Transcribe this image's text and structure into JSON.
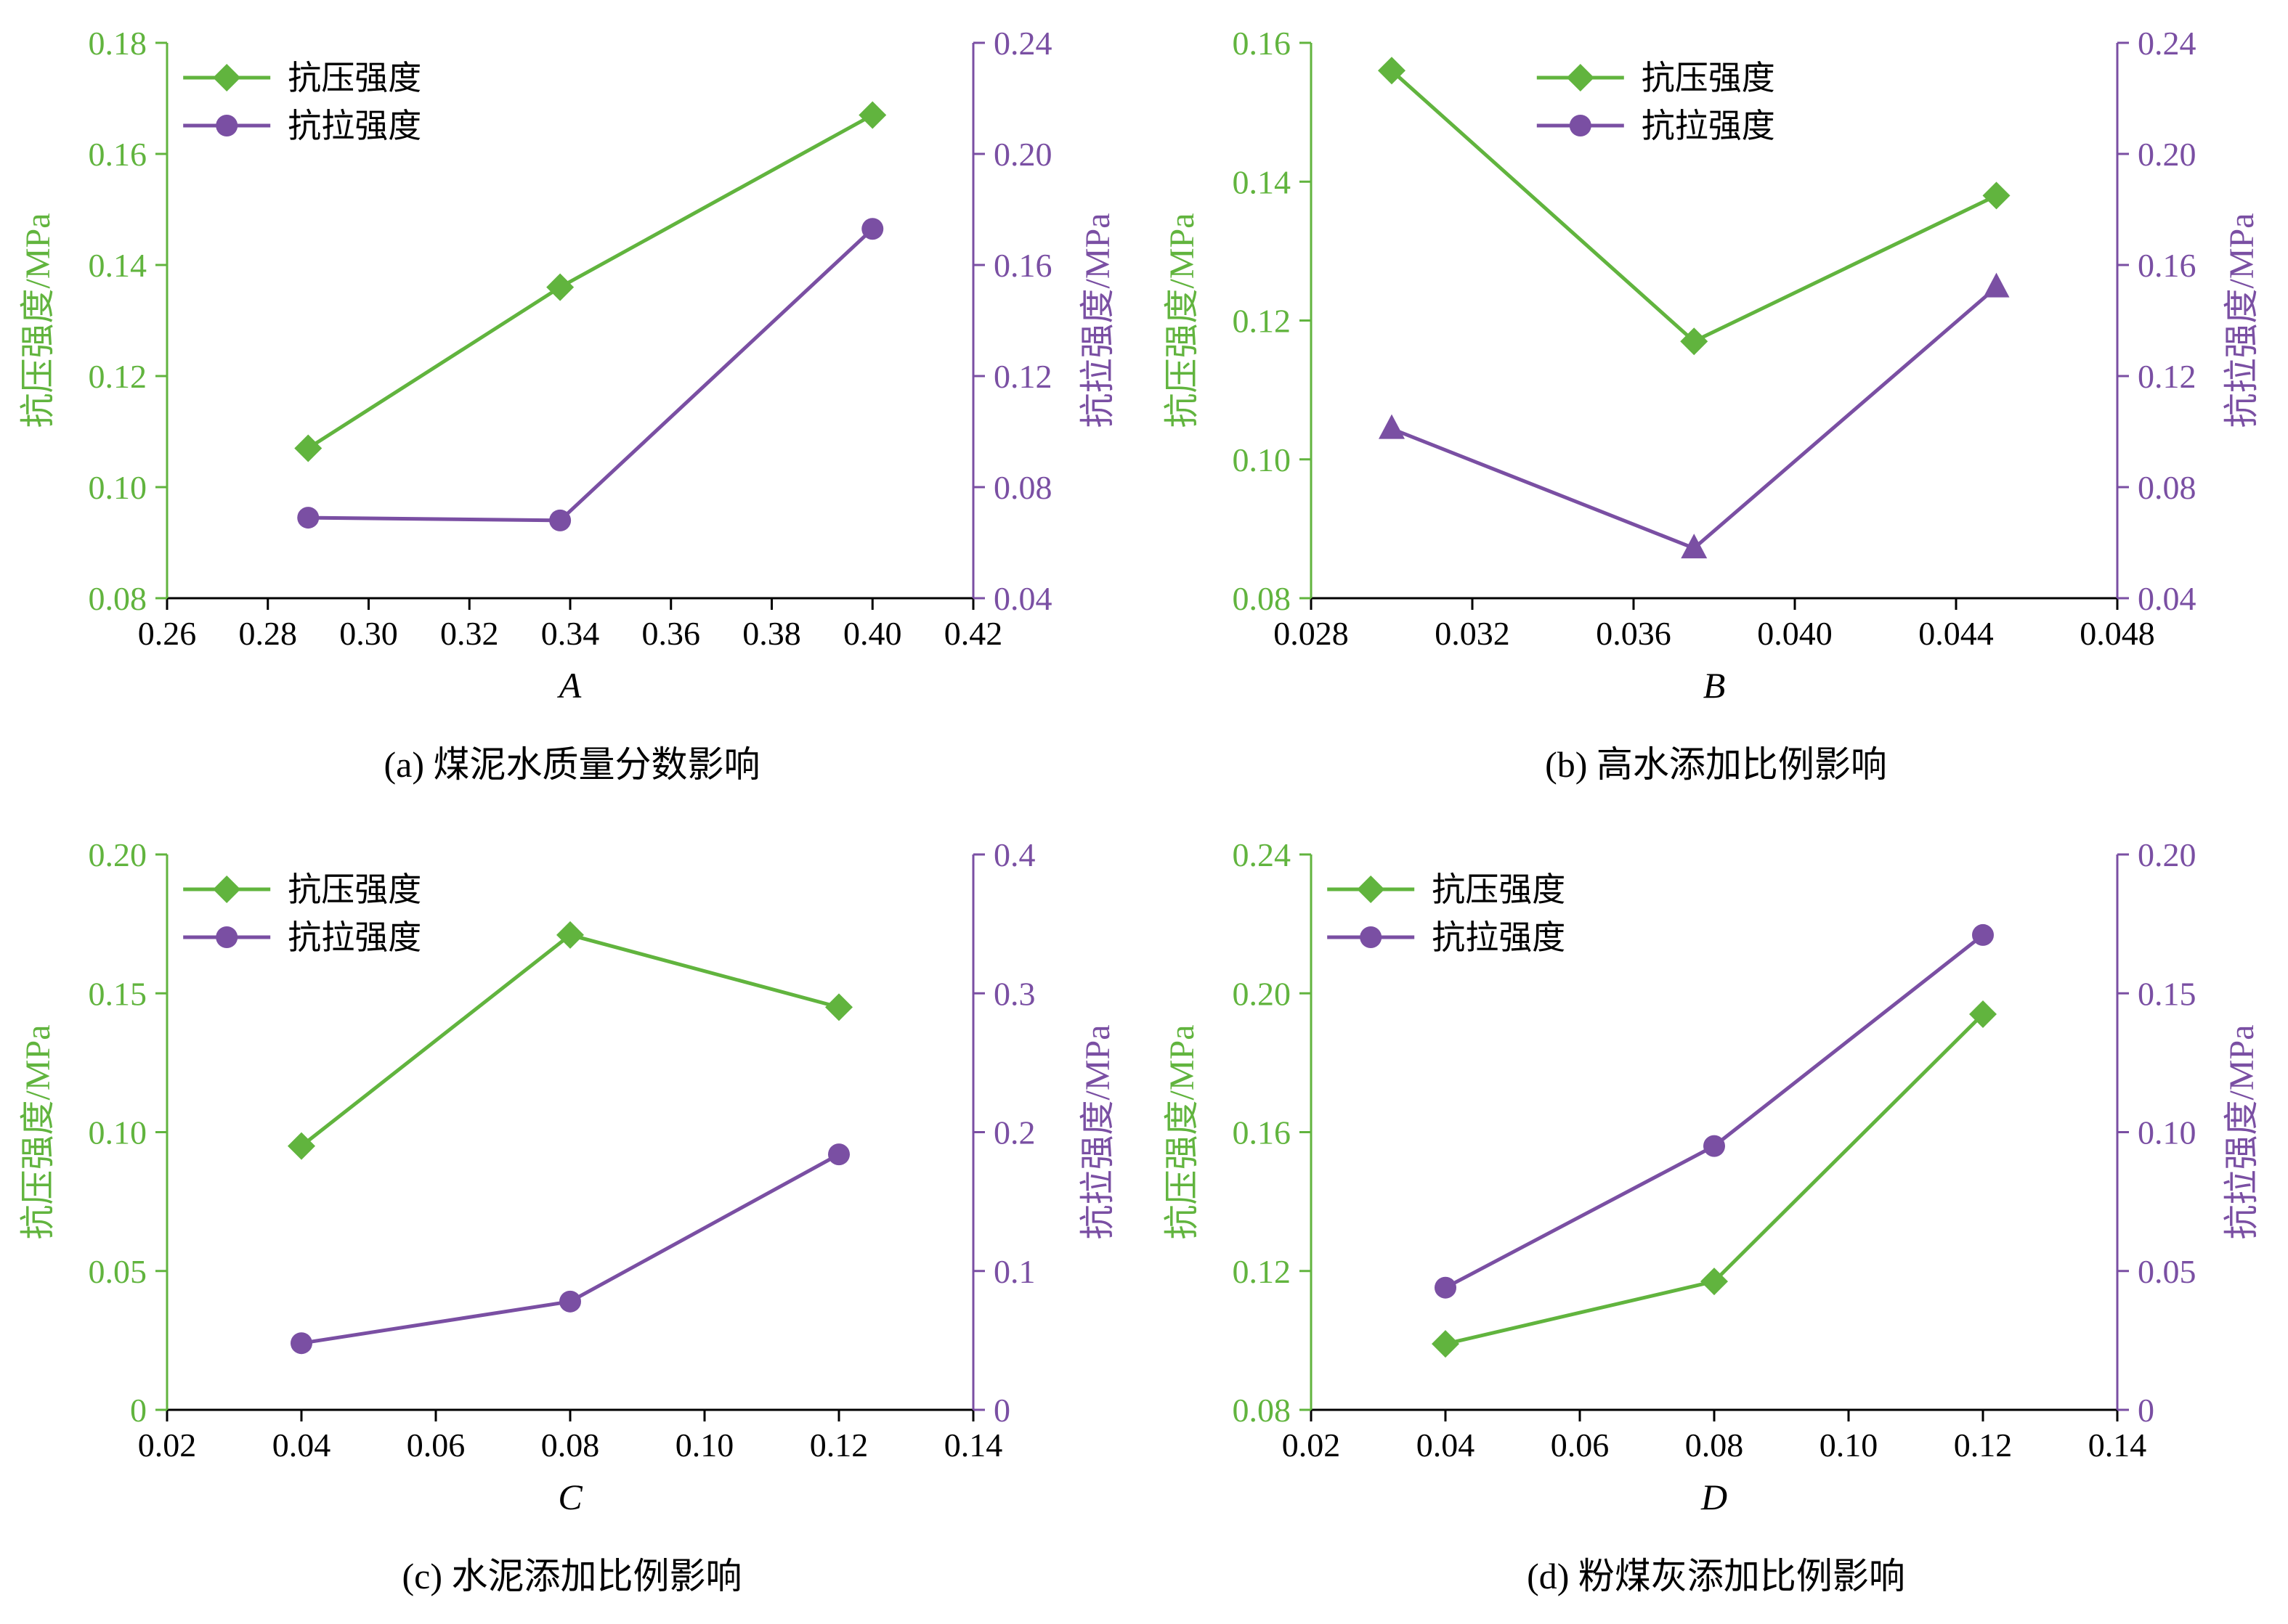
{
  "colors": {
    "green": "#61b43e",
    "purple": "#7a4fa3",
    "axis": "#000000"
  },
  "axis_titles": {
    "left": "抗压强度/MPa",
    "right": "抗拉强度/MPa"
  },
  "legend_labels": {
    "compressive": "抗压强度",
    "tensile": "抗拉强度"
  },
  "chart_data": [
    {
      "type": "line",
      "id": "a",
      "caption": "(a) 煤泥水质量分数影响",
      "xlabel": "A",
      "xlim": [
        0.26,
        0.42
      ],
      "xticks": {
        "values": [
          0.26,
          0.28,
          0.3,
          0.32,
          0.34,
          0.36,
          0.38,
          0.4,
          0.42
        ],
        "labels": [
          "0.26",
          "0.28",
          "0.30",
          "0.32",
          "0.34",
          "0.36",
          "0.38",
          "0.40",
          "0.42"
        ]
      },
      "yl_lim": [
        0.08,
        0.18
      ],
      "yl_ticks": {
        "values": [
          0.08,
          0.1,
          0.12,
          0.14,
          0.16,
          0.18
        ],
        "labels": [
          "0.08",
          "0.10",
          "0.12",
          "0.14",
          "0.16",
          "0.18"
        ]
      },
      "yr_lim": [
        0.04,
        0.24
      ],
      "yr_ticks": {
        "values": [
          0.04,
          0.08,
          0.12,
          0.16,
          0.2,
          0.24
        ],
        "labels": [
          "0.04",
          "0.08",
          "0.12",
          "0.16",
          "0.20",
          "0.24"
        ]
      },
      "legend_fx": 0.02,
      "series": [
        {
          "name": "抗压强度",
          "axis": "left",
          "color": "#61b43e",
          "marker": "diamond",
          "x": [
            0.288,
            0.338,
            0.4
          ],
          "y": [
            0.107,
            0.136,
            0.167
          ]
        },
        {
          "name": "抗拉强度",
          "axis": "right",
          "color": "#7a4fa3",
          "marker": "circle",
          "x": [
            0.288,
            0.338,
            0.4
          ],
          "y": [
            0.069,
            0.068,
            0.173
          ]
        }
      ]
    },
    {
      "type": "line",
      "id": "b",
      "caption": "(b) 高水添加比例影响",
      "xlabel": "B",
      "xlim": [
        0.028,
        0.048
      ],
      "xticks": {
        "values": [
          0.028,
          0.032,
          0.036,
          0.04,
          0.044,
          0.048
        ],
        "labels": [
          "0.028",
          "0.032",
          "0.036",
          "0.040",
          "0.044",
          "0.048"
        ]
      },
      "yl_lim": [
        0.08,
        0.16
      ],
      "yl_ticks": {
        "values": [
          0.08,
          0.1,
          0.12,
          0.14,
          0.16
        ],
        "labels": [
          "0.08",
          "0.10",
          "0.12",
          "0.14",
          "0.16"
        ]
      },
      "yr_lim": [
        0.04,
        0.24
      ],
      "yr_ticks": {
        "values": [
          0.04,
          0.08,
          0.12,
          0.16,
          0.2,
          0.24
        ],
        "labels": [
          "0.04",
          "0.08",
          "0.12",
          "0.16",
          "0.20",
          "0.24"
        ]
      },
      "legend_fx": 0.28,
      "series": [
        {
          "name": "抗压强度",
          "axis": "left",
          "color": "#61b43e",
          "marker": "diamond",
          "x": [
            0.03,
            0.0375,
            0.045
          ],
          "y": [
            0.156,
            0.117,
            0.138
          ]
        },
        {
          "name": "抗拉强度",
          "axis": "right",
          "color": "#7a4fa3",
          "marker": "triangle",
          "legend_marker": "circle",
          "x": [
            0.03,
            0.0375,
            0.045
          ],
          "y": [
            0.101,
            0.058,
            0.152
          ]
        }
      ]
    },
    {
      "type": "line",
      "id": "c",
      "caption": "(c) 水泥添加比例影响",
      "xlabel": "C",
      "xlim": [
        0.02,
        0.14
      ],
      "xticks": {
        "values": [
          0.02,
          0.04,
          0.06,
          0.08,
          0.1,
          0.12,
          0.14
        ],
        "labels": [
          "0.02",
          "0.04",
          "0.06",
          "0.08",
          "0.10",
          "0.12",
          "0.14"
        ]
      },
      "yl_lim": [
        0,
        0.2
      ],
      "yl_ticks": {
        "values": [
          0,
          0.05,
          0.1,
          0.15,
          0.2
        ],
        "labels": [
          "0",
          "0.05",
          "0.10",
          "0.15",
          "0.20"
        ]
      },
      "yr_lim": [
        0,
        0.4
      ],
      "yr_ticks": {
        "values": [
          0,
          0.1,
          0.2,
          0.3,
          0.4
        ],
        "labels": [
          "0",
          "0.1",
          "0.2",
          "0.3",
          "0.4"
        ]
      },
      "legend_fx": 0.02,
      "series": [
        {
          "name": "抗压强度",
          "axis": "left",
          "color": "#61b43e",
          "marker": "diamond",
          "x": [
            0.04,
            0.08,
            0.12
          ],
          "y": [
            0.095,
            0.171,
            0.145
          ]
        },
        {
          "name": "抗拉强度",
          "axis": "right",
          "color": "#7a4fa3",
          "marker": "circle",
          "x": [
            0.04,
            0.08,
            0.12
          ],
          "y": [
            0.048,
            0.078,
            0.184
          ]
        }
      ]
    },
    {
      "type": "line",
      "id": "d",
      "caption": "(d) 粉煤灰添加比例影响",
      "xlabel": "D",
      "xlim": [
        0.02,
        0.14
      ],
      "xticks": {
        "values": [
          0.02,
          0.04,
          0.06,
          0.08,
          0.1,
          0.12,
          0.14
        ],
        "labels": [
          "0.02",
          "0.04",
          "0.06",
          "0.08",
          "0.10",
          "0.12",
          "0.14"
        ]
      },
      "yl_lim": [
        0.08,
        0.24
      ],
      "yl_ticks": {
        "values": [
          0.08,
          0.12,
          0.16,
          0.2,
          0.24
        ],
        "labels": [
          "0.08",
          "0.12",
          "0.16",
          "0.20",
          "0.24"
        ]
      },
      "yr_lim": [
        0,
        0.2
      ],
      "yr_ticks": {
        "values": [
          0,
          0.05,
          0.1,
          0.15,
          0.2
        ],
        "labels": [
          "0",
          "0.05",
          "0.10",
          "0.15",
          "0.20"
        ]
      },
      "legend_fx": 0.02,
      "series": [
        {
          "name": "抗压强度",
          "axis": "left",
          "color": "#61b43e",
          "marker": "diamond",
          "x": [
            0.04,
            0.08,
            0.12
          ],
          "y": [
            0.099,
            0.117,
            0.194
          ]
        },
        {
          "name": "抗拉强度",
          "axis": "right",
          "color": "#7a4fa3",
          "marker": "circle",
          "x": [
            0.04,
            0.08,
            0.12
          ],
          "y": [
            0.044,
            0.095,
            0.171
          ]
        }
      ]
    }
  ]
}
